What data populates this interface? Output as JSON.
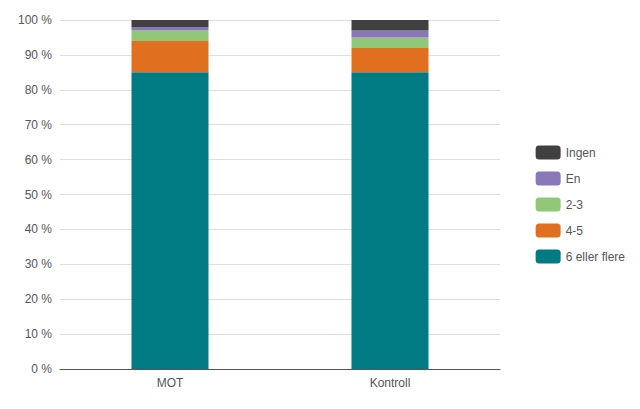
{
  "chart_data": {
    "type": "bar",
    "stacked": true,
    "categories": [
      "MOT",
      "Kontroll"
    ],
    "series": [
      {
        "name": "6 eller flere",
        "values": [
          85,
          85
        ],
        "color": "#007b84"
      },
      {
        "name": "4-5",
        "values": [
          9,
          7
        ],
        "color": "#e07020"
      },
      {
        "name": "2-3",
        "values": [
          3,
          3
        ],
        "color": "#90c878"
      },
      {
        "name": "En",
        "values": [
          1,
          2
        ],
        "color": "#8878b8"
      },
      {
        "name": "Ingen",
        "values": [
          2,
          3
        ],
        "color": "#404040"
      }
    ],
    "ylim": [
      0,
      100
    ],
    "yticks": [
      {
        "value": 0,
        "label": "0 %"
      },
      {
        "value": 10,
        "label": "10 %"
      },
      {
        "value": 20,
        "label": "20 %"
      },
      {
        "value": 30,
        "label": "30 %"
      },
      {
        "value": 40,
        "label": "40 %"
      },
      {
        "value": 50,
        "label": "50 %"
      },
      {
        "value": 60,
        "label": "60 %"
      },
      {
        "value": 70,
        "label": "70 %"
      },
      {
        "value": 80,
        "label": "80 %"
      },
      {
        "value": 90,
        "label": "90 %"
      },
      {
        "value": 100,
        "label": "100 %"
      }
    ],
    "grid": true,
    "legend": "right"
  }
}
